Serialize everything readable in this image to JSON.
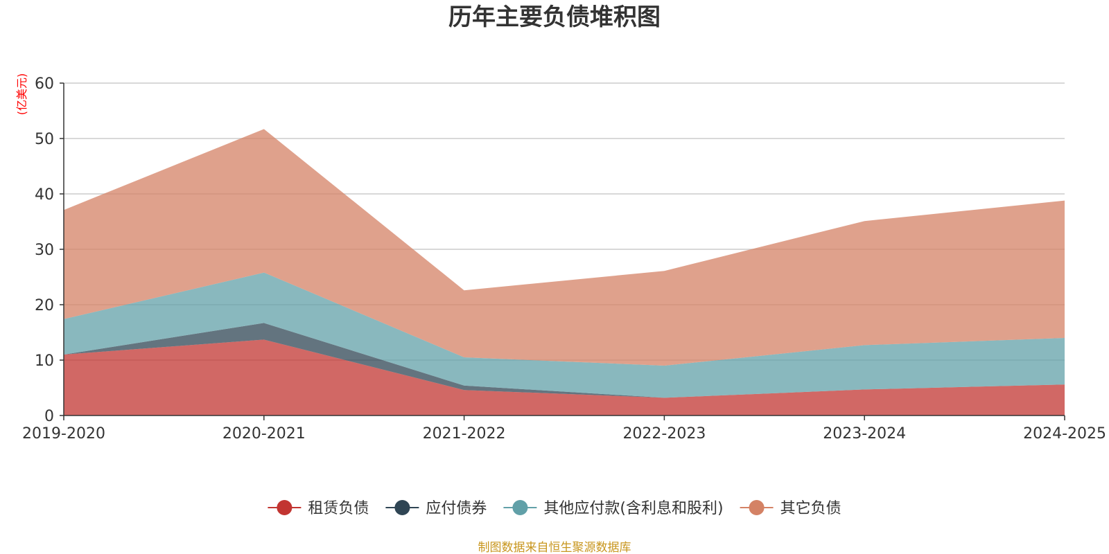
{
  "chart_data": {
    "type": "area",
    "stacked": true,
    "title": "历年主要负债堆积图",
    "unit_label": "(亿美元)",
    "categories": [
      "2019-2020",
      "2020-2021",
      "2021-2022",
      "2022-2023",
      "2023-2024",
      "2024-2025"
    ],
    "ylim": [
      0,
      60
    ],
    "yticks": [
      0,
      10,
      20,
      30,
      40,
      50,
      60
    ],
    "grid": true,
    "legend_position": "bottom",
    "series": [
      {
        "name": "租赁负债",
        "color": "#c23531",
        "values": [
          11.0,
          13.7,
          4.6,
          3.2,
          4.7,
          5.6
        ]
      },
      {
        "name": "应付债券",
        "color": "#2f4554",
        "values": [
          0.0,
          3.0,
          0.8,
          0.0,
          0.0,
          0.0
        ]
      },
      {
        "name": "其他应付款(含利息和股利)",
        "color": "#61a0a8",
        "values": [
          6.4,
          9.1,
          5.1,
          5.8,
          8.0,
          8.4
        ]
      },
      {
        "name": "其它负债",
        "color": "#d48265",
        "values": [
          19.7,
          25.9,
          12.1,
          17.1,
          22.4,
          24.8
        ]
      }
    ],
    "source_note": "制图数据来自恒生聚源数据库"
  }
}
